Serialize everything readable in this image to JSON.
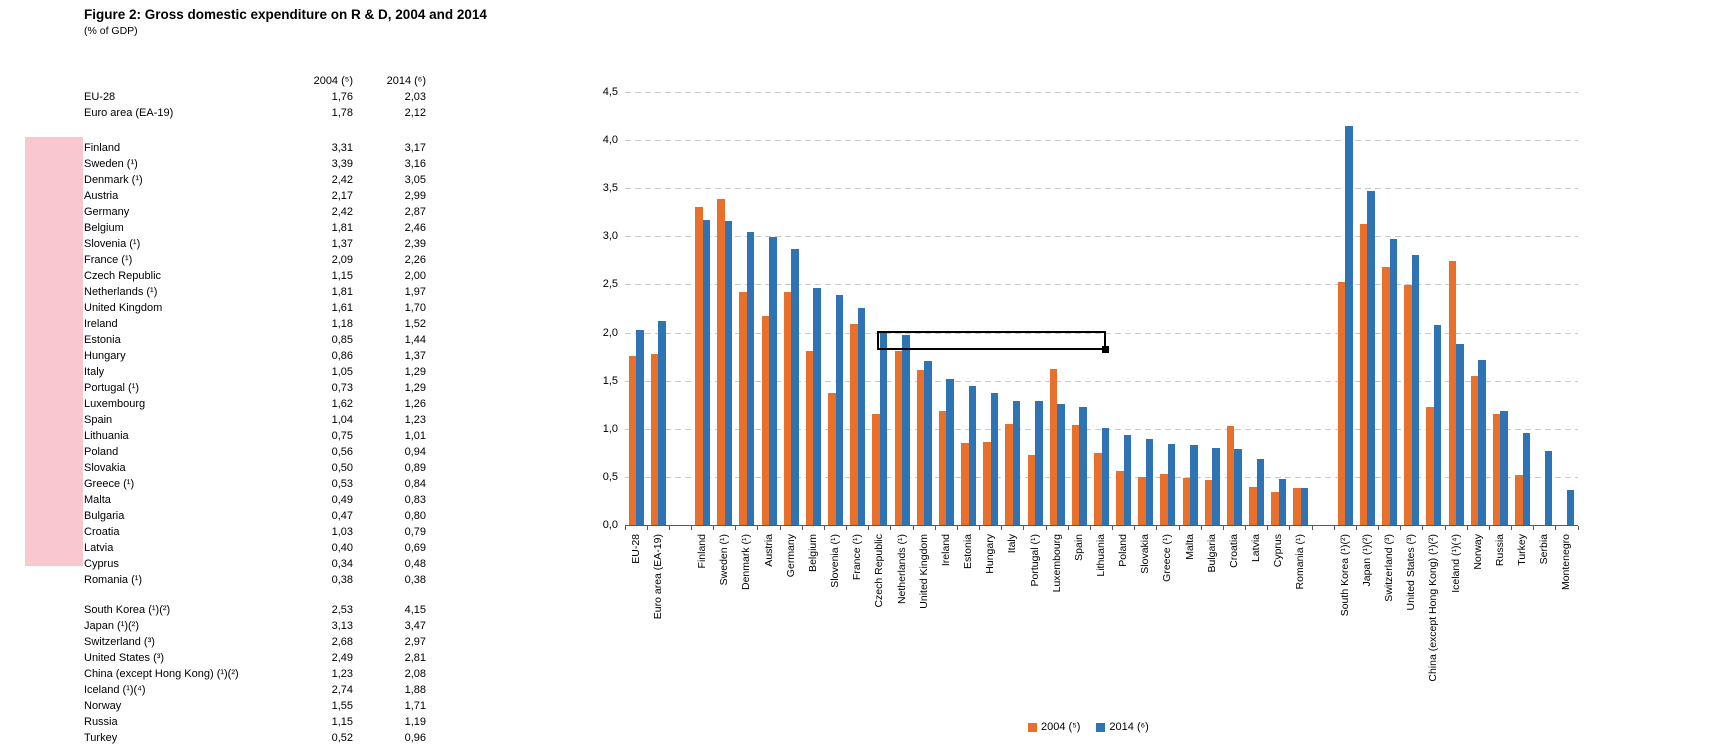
{
  "figure": {
    "title": "Figure 2: Gross domestic expenditure on R & D, 2004 and 2014",
    "subtitle": "(% of GDP)"
  },
  "table": {
    "col_headers": [
      "2004 (⁵)",
      "2014 (⁶)"
    ],
    "groups": [
      {
        "name": "aggregates",
        "highlighted": false,
        "rows": [
          [
            "EU-28",
            "1,76",
            "2,03"
          ],
          [
            "Euro area (EA-19)",
            "1,78",
            "2,12"
          ]
        ]
      },
      {
        "name": "eu-members",
        "highlighted": true,
        "highlight_color": "#F8C8CE",
        "rows": [
          [
            "Finland",
            "3,31",
            "3,17"
          ],
          [
            "Sweden (¹)",
            "3,39",
            "3,16"
          ],
          [
            "Denmark (¹)",
            "2,42",
            "3,05"
          ],
          [
            "Austria",
            "2,17",
            "2,99"
          ],
          [
            "Germany",
            "2,42",
            "2,87"
          ],
          [
            "Belgium",
            "1,81",
            "2,46"
          ],
          [
            "Slovenia (¹)",
            "1,37",
            "2,39"
          ],
          [
            "France (¹)",
            "2,09",
            "2,26"
          ],
          [
            "Czech Republic",
            "1,15",
            "2,00"
          ],
          [
            "Netherlands (¹)",
            "1,81",
            "1,97"
          ],
          [
            "United Kingdom",
            "1,61",
            "1,70"
          ],
          [
            "Ireland",
            "1,18",
            "1,52"
          ],
          [
            "Estonia",
            "0,85",
            "1,44"
          ],
          [
            "Hungary",
            "0,86",
            "1,37"
          ],
          [
            "Italy",
            "1,05",
            "1,29"
          ],
          [
            "Portugal (¹)",
            "0,73",
            "1,29"
          ],
          [
            "Luxembourg",
            "1,62",
            "1,26"
          ],
          [
            "Spain",
            "1,04",
            "1,23"
          ],
          [
            "Lithuania",
            "0,75",
            "1,01"
          ],
          [
            "Poland",
            "0,56",
            "0,94"
          ],
          [
            "Slovakia",
            "0,50",
            "0,89"
          ],
          [
            "Greece (¹)",
            "0,53",
            "0,84"
          ],
          [
            "Malta",
            "0,49",
            "0,83"
          ],
          [
            "Bulgaria",
            "0,47",
            "0,80"
          ],
          [
            "Croatia",
            "1,03",
            "0,79"
          ],
          [
            "Latvia",
            "0,40",
            "0,69"
          ],
          [
            "Cyprus",
            "0,34",
            "0,48"
          ],
          [
            "Romania (¹)",
            "0,38",
            "0,38"
          ]
        ]
      },
      {
        "name": "non-eu",
        "highlighted": false,
        "rows": [
          [
            "South Korea (¹)(²)",
            "2,53",
            "4,15"
          ],
          [
            "Japan (¹)(²)",
            "3,13",
            "3,47"
          ],
          [
            "Switzerland (³)",
            "2,68",
            "2,97"
          ],
          [
            "United States (³)",
            "2,49",
            "2,81"
          ],
          [
            "China (except Hong Kong) (¹)(²)",
            "1,23",
            "2,08"
          ],
          [
            "Iceland (¹)(⁴)",
            "2,74",
            "1,88"
          ],
          [
            "Norway",
            "1,55",
            "1,71"
          ],
          [
            "Russia",
            "1,15",
            "1,19"
          ],
          [
            "Turkey",
            "0,52",
            "0,96"
          ]
        ]
      }
    ]
  },
  "chart_data": {
    "type": "bar",
    "title": "Gross domestic expenditure on R & D, 2004 and 2014 (% of GDP)",
    "xlabel": "",
    "ylabel": "",
    "ylim": [
      0,
      4.5
    ],
    "ytick_step": 0.5,
    "ytick_labels": [
      "0,0",
      "0,5",
      "1,0",
      "1,5",
      "2,0",
      "2,5",
      "3,0",
      "3,5",
      "4,0",
      "4,5"
    ],
    "grid": "horizontal-dashed",
    "legend_position": "bottom",
    "categories": [
      "EU-28",
      "Euro area (EA-19)",
      "",
      "Finland",
      "Sweden (¹)",
      "Denmark (¹)",
      "Austria",
      "Germany",
      "Belgium",
      "Slovenia (¹)",
      "France (¹)",
      "Czech Republic",
      "Netherlands (¹)",
      "United Kingdom",
      "Ireland",
      "Estonia",
      "Hungary",
      "Italy",
      "Portugal (¹)",
      "Luxembourg",
      "Spain",
      "Lithuania",
      "Poland",
      "Slovakia",
      "Greece (¹)",
      "Malta",
      "Bulgaria",
      "Croatia",
      "Latvia",
      "Cyprus",
      "Romania (¹)",
      "",
      "South Korea (¹)(²)",
      "Japan (¹)(²)",
      "Switzerland (³)",
      "United States (³)",
      "China (except Hong Kong) (¹)(²)",
      "Iceland (¹)(⁴)",
      "Norway",
      "Russia",
      "Turkey",
      "Serbia",
      "Montenegro"
    ],
    "series": [
      {
        "name": "2004 (⁵)",
        "color": "#E8702A",
        "values": [
          1.76,
          1.78,
          null,
          3.31,
          3.39,
          2.42,
          2.17,
          2.42,
          1.81,
          1.37,
          2.09,
          1.15,
          1.81,
          1.61,
          1.18,
          0.85,
          0.86,
          1.05,
          0.73,
          1.62,
          1.04,
          0.75,
          0.56,
          0.5,
          0.53,
          0.49,
          0.47,
          1.03,
          0.4,
          0.34,
          0.38,
          null,
          2.53,
          3.13,
          2.68,
          2.49,
          1.23,
          2.74,
          1.55,
          1.15,
          0.52,
          null,
          null
        ]
      },
      {
        "name": "2014 (⁶)",
        "color": "#2E74B5",
        "values": [
          2.03,
          2.12,
          null,
          3.17,
          3.16,
          3.05,
          2.99,
          2.87,
          2.46,
          2.39,
          2.26,
          2.0,
          1.97,
          1.7,
          1.52,
          1.44,
          1.37,
          1.29,
          1.29,
          1.26,
          1.23,
          1.01,
          0.94,
          0.89,
          0.84,
          0.83,
          0.8,
          0.79,
          0.69,
          0.48,
          0.38,
          null,
          4.15,
          3.47,
          2.97,
          2.81,
          2.08,
          1.88,
          1.71,
          1.19,
          0.96,
          0.77,
          0.36
        ]
      }
    ]
  }
}
